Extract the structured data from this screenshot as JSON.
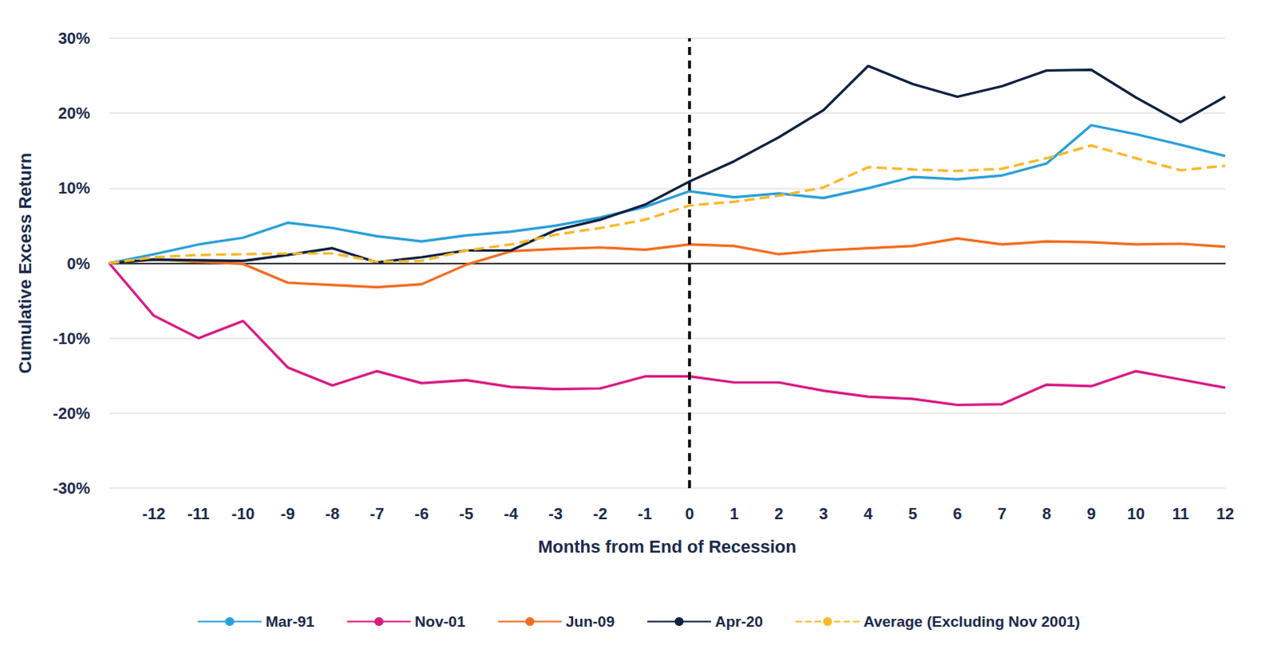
{
  "chart_data": {
    "type": "line",
    "x_label": "Months from End of Recession",
    "y_label": "Cumulative Excess Return",
    "categories": [
      null,
      -12,
      -11,
      -10,
      -9,
      -8,
      -7,
      -6,
      -5,
      -4,
      -3,
      -2,
      -1,
      0,
      1,
      2,
      3,
      4,
      5,
      6,
      7,
      8,
      9,
      10,
      11,
      12
    ],
    "reference_x": 0,
    "series": [
      {
        "name": "Mar-91",
        "color": "#2aa0d8",
        "line_style": "solid",
        "values": [
          0,
          1.2,
          2.5,
          3.4,
          5.4,
          4.7,
          3.6,
          2.9,
          3.7,
          4.2,
          5.0,
          6.1,
          7.5,
          9.6,
          8.8,
          9.3,
          8.7,
          10.0,
          11.5,
          11.2,
          11.7,
          13.3,
          18.4,
          17.2,
          15.8,
          14.3
        ]
      },
      {
        "name": "Nov-01",
        "color": "#d81b84",
        "line_style": "solid",
        "values": [
          0,
          -7.0,
          -10.0,
          -7.7,
          -13.9,
          -16.3,
          -14.4,
          -16.0,
          -15.6,
          -16.5,
          -16.8,
          -16.7,
          -15.1,
          -15.1,
          -15.9,
          -15.9,
          -17.0,
          -17.8,
          -18.1,
          -18.9,
          -18.8,
          -16.2,
          -16.4,
          -14.4,
          -15.5,
          -16.6
        ]
      },
      {
        "name": "Jun-09",
        "color": "#f26d21",
        "line_style": "solid",
        "values": [
          0,
          0.5,
          0.2,
          -0.1,
          -2.6,
          -2.9,
          -3.2,
          -2.8,
          -0.2,
          1.6,
          1.9,
          2.1,
          1.8,
          2.5,
          2.3,
          1.2,
          1.7,
          2.0,
          2.3,
          3.3,
          2.5,
          2.9,
          2.8,
          2.5,
          2.6,
          2.2
        ]
      },
      {
        "name": "Apr-20",
        "color": "#0d2240",
        "line_style": "solid",
        "values": [
          0,
          0.5,
          0.4,
          0.3,
          1.1,
          2.0,
          0.1,
          0.8,
          1.7,
          1.7,
          4.4,
          5.8,
          7.8,
          10.9,
          13.6,
          16.8,
          20.4,
          26.3,
          23.9,
          22.2,
          23.6,
          25.7,
          25.8,
          22.1,
          18.8,
          22.2
        ]
      },
      {
        "name": "Average (Excluding Nov 2001)",
        "color": "#fbb829",
        "line_style": "dashed",
        "values": [
          0,
          0.8,
          1.1,
          1.2,
          1.3,
          1.3,
          0.2,
          0.3,
          1.7,
          2.5,
          3.8,
          4.7,
          5.8,
          7.7,
          8.2,
          9.0,
          10.1,
          12.8,
          12.5,
          12.3,
          12.6,
          14.0,
          15.7,
          14.0,
          12.4,
          13.0
        ]
      }
    ],
    "ylim": [
      -30,
      30
    ],
    "yticks": [
      {
        "value": -30,
        "label": "-30%"
      },
      {
        "value": -20,
        "label": "-20%"
      },
      {
        "value": -10,
        "label": "-10%"
      },
      {
        "value": 0,
        "label": "0%"
      },
      {
        "value": 10,
        "label": "10%"
      },
      {
        "value": 20,
        "label": "20%"
      },
      {
        "value": 30,
        "label": "30%"
      }
    ],
    "grid": true,
    "legend": "bottom"
  }
}
